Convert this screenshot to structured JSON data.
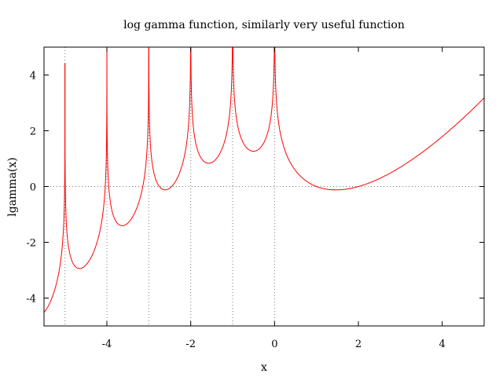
{
  "chart_data": {
    "type": "line",
    "title": "log gamma function, similarly very useful function",
    "xlabel": "x",
    "ylabel": "lgamma(x)",
    "xlim": [
      -5.5,
      5
    ],
    "ylim": [
      -5,
      5
    ],
    "x_ticks": [
      -4,
      -2,
      0,
      2,
      4
    ],
    "y_ticks": [
      -4,
      -2,
      0,
      2,
      4
    ],
    "x_tick_labels": [
      "-4",
      "-2",
      "0",
      "2",
      "4"
    ],
    "y_tick_labels": [
      "-4",
      "-2",
      "0",
      "2",
      "4"
    ],
    "grid": "dotted zero axes and vertical dotted lines at integer poles",
    "pole_lines_x": [
      -5,
      -4,
      -3,
      -2,
      -1
    ],
    "series": [
      {
        "function": "lgamma(x)",
        "color": "#ff0000"
      }
    ],
    "peak_values": [
      {
        "x": -5,
        "y": 4.9
      },
      {
        "x": -4,
        "y": 5
      },
      {
        "x": -3,
        "y": 5
      },
      {
        "x": -2,
        "y": 5
      },
      {
        "x": -1,
        "y": 5
      },
      {
        "x": 0,
        "y": 5
      }
    ],
    "local_minima": [
      {
        "x": -4.75,
        "y": -2.9
      },
      {
        "x": -3.64,
        "y": -1.42
      },
      {
        "x": -2.61,
        "y": -0.12
      },
      {
        "x": -1.57,
        "y": 0.83
      },
      {
        "x": -0.5,
        "y": 1.27
      },
      {
        "x": 1.46,
        "y": -0.12
      }
    ]
  }
}
